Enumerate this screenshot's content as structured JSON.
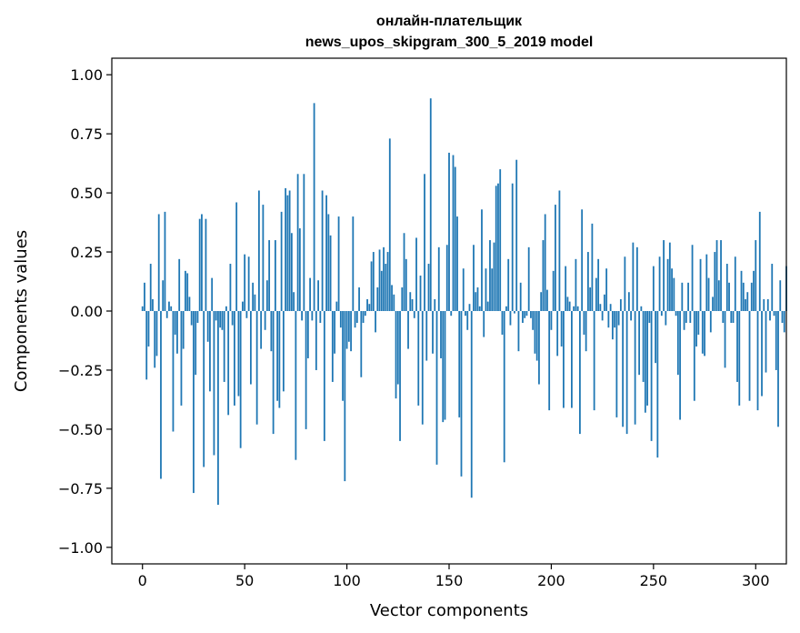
{
  "chart_data": {
    "type": "bar",
    "title": "онлайн-плательщик",
    "subtitle": "news_upos_skipgram_300_5_2019 model",
    "xlabel": "Vector components",
    "ylabel": "Components values",
    "xlim": [
      -15,
      315
    ],
    "ylim": [
      -1.07,
      1.07
    ],
    "xticks": [
      0,
      50,
      100,
      150,
      200,
      250,
      300
    ],
    "xtick_labels": [
      "0",
      "50",
      "100",
      "150",
      "200",
      "250",
      "300"
    ],
    "yticks": [
      -1.0,
      -0.75,
      -0.5,
      -0.25,
      0.0,
      0.25,
      0.5,
      0.75,
      1.0
    ],
    "ytick_labels": [
      "−1.00",
      "−0.75",
      "−0.50",
      "−0.25",
      "0.00",
      "0.25",
      "0.50",
      "0.75",
      "1.00"
    ],
    "grid": false,
    "bar_color": "#1f77b4",
    "values": [
      0.02,
      0.12,
      -0.29,
      -0.15,
      0.2,
      0.05,
      -0.24,
      -0.19,
      0.41,
      -0.71,
      0.13,
      0.42,
      -0.03,
      0.04,
      0.02,
      -0.51,
      -0.1,
      -0.18,
      0.22,
      -0.4,
      -0.16,
      0.17,
      0.16,
      0.06,
      -0.06,
      -0.77,
      -0.27,
      -0.05,
      0.39,
      0.41,
      -0.66,
      0.39,
      -0.13,
      -0.34,
      0.14,
      -0.61,
      -0.04,
      -0.82,
      -0.07,
      -0.08,
      -0.3,
      0.02,
      -0.44,
      0.2,
      -0.06,
      -0.4,
      0.46,
      -0.36,
      -0.58,
      0.04,
      0.24,
      -0.03,
      0.23,
      -0.31,
      0.12,
      0.07,
      -0.48,
      0.51,
      -0.16,
      0.45,
      -0.08,
      0.13,
      0.3,
      -0.17,
      -0.52,
      0.3,
      -0.38,
      -0.41,
      0.42,
      -0.34,
      0.52,
      0.49,
      0.51,
      0.33,
      0.08,
      -0.63,
      0.58,
      0.35,
      -0.04,
      0.58,
      -0.5,
      -0.2,
      0.14,
      -0.04,
      0.88,
      -0.25,
      0.13,
      -0.05,
      0.51,
      -0.55,
      0.49,
      0.41,
      0.32,
      -0.3,
      -0.18,
      0.04,
      0.4,
      -0.07,
      -0.38,
      -0.72,
      -0.16,
      -0.13,
      -0.17,
      0.4,
      -0.07,
      -0.05,
      0.1,
      -0.28,
      -0.05,
      -0.02,
      0.05,
      0.03,
      0.21,
      0.25,
      -0.09,
      0.1,
      0.26,
      0.17,
      0.27,
      0.2,
      0.25,
      0.73,
      0.11,
      0.07,
      -0.37,
      -0.31,
      -0.55,
      0.1,
      0.33,
      0.22,
      -0.16,
      0.08,
      0.05,
      -0.03,
      0.31,
      -0.4,
      0.15,
      -0.48,
      0.58,
      -0.21,
      0.2,
      0.9,
      -0.18,
      0.05,
      -0.65,
      0.27,
      -0.2,
      -0.47,
      -0.46,
      0.28,
      0.67,
      -0.02,
      0.66,
      0.61,
      0.4,
      -0.45,
      -0.7,
      0.18,
      -0.02,
      -0.08,
      0.03,
      -0.79,
      0.28,
      0.08,
      0.1,
      0.02,
      0.43,
      -0.11,
      0.18,
      0.04,
      0.3,
      0.18,
      0.29,
      0.53,
      0.54,
      0.6,
      -0.1,
      -0.64,
      0.02,
      0.22,
      -0.06,
      0.54,
      -0.01,
      0.64,
      -0.17,
      0.12,
      -0.05,
      -0.03,
      -0.02,
      0.27,
      -0.03,
      -0.08,
      -0.18,
      -0.21,
      -0.31,
      0.08,
      0.3,
      0.41,
      0.09,
      -0.42,
      -0.08,
      0.17,
      0.45,
      -0.19,
      0.51,
      -0.15,
      -0.41,
      0.19,
      0.06,
      0.04,
      -0.41,
      0.02,
      0.22,
      0.02,
      -0.52,
      0.43,
      -0.1,
      -0.17,
      0.25,
      0.1,
      0.37,
      -0.42,
      0.14,
      0.22,
      0.03,
      -0.04,
      0.07,
      0.18,
      -0.07,
      0.03,
      -0.12,
      -0.07,
      -0.45,
      -0.06,
      0.05,
      -0.49,
      0.23,
      -0.52,
      0.08,
      -0.04,
      0.29,
      -0.48,
      0.27,
      -0.27,
      0.02,
      -0.3,
      -0.43,
      -0.4,
      -0.05,
      -0.55,
      0.19,
      -0.22,
      -0.62,
      0.23,
      -0.02,
      0.3,
      -0.06,
      0.22,
      0.29,
      0.18,
      0.14,
      -0.02,
      -0.27,
      -0.46,
      0.12,
      -0.08,
      -0.05,
      0.12,
      -0.05,
      0.28,
      -0.38,
      -0.15,
      -0.1,
      0.22,
      -0.18,
      -0.19,
      0.24,
      0.14,
      -0.09,
      0.06,
      0.25,
      0.3,
      0.13,
      0.3,
      -0.05,
      -0.24,
      0.2,
      0.12,
      -0.05,
      -0.05,
      0.23,
      -0.3,
      -0.4,
      0.17,
      0.12,
      0.05,
      0.08,
      -0.38,
      0.12,
      0.17,
      0.3,
      -0.42,
      0.42,
      -0.36,
      0.05,
      -0.26,
      0.05,
      -0.04,
      0.2,
      -0.02,
      -0.25,
      -0.49,
      0.13,
      -0.05,
      -0.09,
      0.19
    ]
  }
}
